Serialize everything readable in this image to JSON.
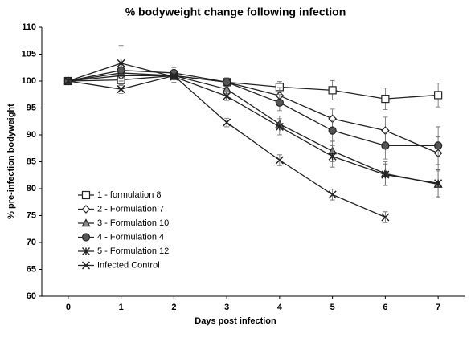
{
  "chart_data": {
    "type": "line",
    "title": "% bodyweight change following infection",
    "x_label": "Days post infection",
    "y_label": "% pre-infection bodyweight",
    "x": [
      0,
      1,
      2,
      3,
      4,
      5,
      6,
      7
    ],
    "xlim": [
      -0.5,
      7.5
    ],
    "xticks": [
      0,
      1,
      2,
      3,
      4,
      5,
      6,
      7
    ],
    "ylim": [
      60,
      110
    ],
    "yticks": [
      60,
      65,
      70,
      75,
      80,
      85,
      90,
      95,
      100,
      105,
      110
    ],
    "legend": "lower-left",
    "series": [
      {
        "name": "1 - formulation 8",
        "color": "#222222",
        "marker": "square",
        "marker_fill": "#ffffff",
        "values": [
          100,
          100.2,
          101,
          99.8,
          98.9,
          98.3,
          96.7,
          97.4
        ],
        "errors": [
          0,
          1,
          0.8,
          0.6,
          1,
          1.8,
          2,
          2.2
        ]
      },
      {
        "name": "2 - Formulation 7",
        "color": "#222222",
        "marker": "diamond",
        "marker_fill": "#ffffff",
        "values": [
          100,
          101,
          101,
          99.8,
          97.3,
          93,
          90.8,
          86.6
        ],
        "errors": [
          0,
          1,
          0.8,
          0.8,
          1.5,
          1.8,
          2.5,
          3
        ]
      },
      {
        "name": "3 - Formulation 10",
        "color": "#222222",
        "marker": "triangle",
        "marker_fill": "#888888",
        "values": [
          100,
          101.5,
          101,
          98.5,
          92,
          87,
          82.8,
          80.8
        ],
        "errors": [
          0,
          1,
          0.8,
          0.8,
          1.5,
          2,
          2.2,
          2.5
        ]
      },
      {
        "name": "4 - Formulation 4",
        "color": "#222222",
        "marker": "circle",
        "marker_fill": "#555555",
        "values": [
          100,
          102,
          101.5,
          99.8,
          96,
          90.8,
          88,
          88
        ],
        "errors": [
          0,
          1.2,
          1,
          0.8,
          1.5,
          2,
          2.5,
          3.5
        ]
      },
      {
        "name": "5 - Formulation 12",
        "color": "#222222",
        "marker": "star",
        "marker_fill": "#222222",
        "values": [
          100,
          103.3,
          100.8,
          97.2,
          91.5,
          86,
          82.6,
          81
        ],
        "errors": [
          0,
          3.3,
          1,
          0.8,
          1.5,
          2,
          2,
          2.5
        ]
      },
      {
        "name": "Infected Control",
        "color": "#222222",
        "marker": "x",
        "marker_fill": "#222222",
        "values": [
          100,
          98.5,
          101,
          92.3,
          85.3,
          78.9,
          74.7,
          null
        ],
        "errors": [
          0,
          0.8,
          0.8,
          0.8,
          1,
          1,
          1,
          null
        ]
      }
    ]
  }
}
